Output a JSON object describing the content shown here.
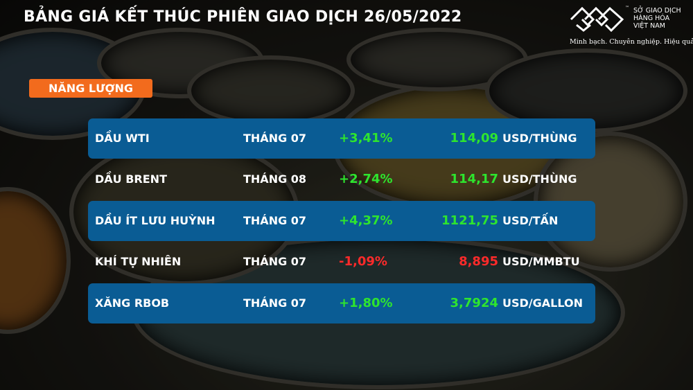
{
  "header": {
    "title": "BẢNG GIÁ KẾT THÚC PHIÊN GIAO DỊCH 26/05/2022"
  },
  "logo": {
    "name_lines": [
      "SỞ GIAO DỊCH",
      "HÀNG HÓA",
      "VIỆT NAM"
    ],
    "tm": "™",
    "slogan": "Minh bạch. Chuyên nghiệp. Hiệu quả"
  },
  "section": {
    "label": "NĂNG LƯỢNG",
    "color": "#f26b1d"
  },
  "colors": {
    "row_highlight": "#0a5c94",
    "up": "#2ee52e",
    "down": "#ff2a2a"
  },
  "rows": [
    {
      "name": "DẦU WTI",
      "month": "THÁNG 07",
      "change": "+3,41%",
      "price": "114,09",
      "unit": "USD/THÙNG",
      "direction": "up",
      "highlight": true
    },
    {
      "name": "DẦU BRENT",
      "month": "THÁNG 08",
      "change": "+2,74%",
      "price": "114,17",
      "unit": "USD/THÙNG",
      "direction": "up",
      "highlight": false
    },
    {
      "name": "DẦU ÍT LƯU HUỲNH",
      "month": "THÁNG 07",
      "change": "+4,37%",
      "price": "1121,75",
      "unit": "USD/TẤN",
      "direction": "up",
      "highlight": true
    },
    {
      "name": "KHÍ TỰ NHIÊN",
      "month": "THÁNG 07",
      "change": "-1,09%",
      "price": "8,895",
      "unit": "USD/MMBTU",
      "direction": "down",
      "highlight": false
    },
    {
      "name": "XĂNG RBOB",
      "month": "THÁNG 07",
      "change": "+1,80%",
      "price": "3,7924",
      "unit": "USD/GALLON",
      "direction": "up",
      "highlight": true
    }
  ]
}
